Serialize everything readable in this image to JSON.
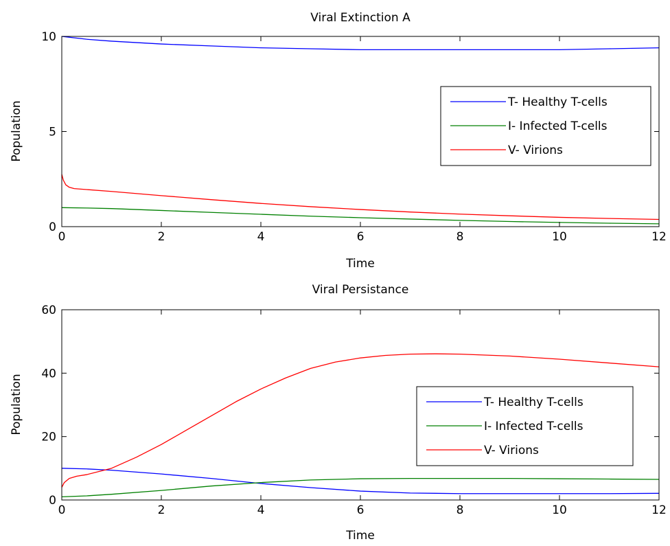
{
  "chart_data": [
    {
      "type": "line",
      "title": "Viral Extinction A",
      "xlabel": "Time",
      "ylabel": "Population",
      "xlim": [
        0,
        12
      ],
      "ylim": [
        0,
        10
      ],
      "xticks": [
        0,
        2,
        4,
        6,
        8,
        10,
        12
      ],
      "yticks": [
        0,
        5,
        10
      ],
      "grid": false,
      "legend_position": "right",
      "series": [
        {
          "name": "T- Healthy T-cells",
          "color": "#0000ff",
          "x": [
            0,
            0.5,
            1,
            2,
            3,
            4,
            5,
            6,
            7,
            8,
            9,
            10,
            11,
            12
          ],
          "y": [
            10,
            9.85,
            9.75,
            9.6,
            9.5,
            9.4,
            9.35,
            9.3,
            9.3,
            9.3,
            9.3,
            9.3,
            9.35,
            9.4
          ]
        },
        {
          "name": "I- Infected T-cells",
          "color": "#008000",
          "x": [
            0,
            0.5,
            1,
            2,
            3,
            4,
            5,
            6,
            7,
            8,
            9,
            10,
            11,
            12
          ],
          "y": [
            1.0,
            0.98,
            0.95,
            0.85,
            0.75,
            0.65,
            0.55,
            0.47,
            0.4,
            0.33,
            0.27,
            0.22,
            0.18,
            0.15
          ]
        },
        {
          "name": "V- Virions",
          "color": "#ff0000",
          "x": [
            0,
            0.03,
            0.08,
            0.15,
            0.25,
            0.5,
            1,
            2,
            3,
            4,
            5,
            6,
            7,
            8,
            9,
            10,
            11,
            12
          ],
          "y": [
            2.75,
            2.45,
            2.2,
            2.07,
            2.0,
            1.95,
            1.85,
            1.63,
            1.42,
            1.22,
            1.05,
            0.9,
            0.77,
            0.66,
            0.57,
            0.49,
            0.43,
            0.38
          ]
        }
      ]
    },
    {
      "type": "line",
      "title": "Viral Persistance",
      "xlabel": "Time",
      "ylabel": "Population",
      "xlim": [
        0,
        12
      ],
      "ylim": [
        0,
        60
      ],
      "xticks": [
        0,
        2,
        4,
        6,
        8,
        10,
        12
      ],
      "yticks": [
        0,
        20,
        40,
        60
      ],
      "grid": false,
      "legend_position": "right",
      "series": [
        {
          "name": "T- Healthy T-cells",
          "color": "#0000ff",
          "x": [
            0,
            0.5,
            1,
            2,
            3,
            4,
            5,
            6,
            7,
            8,
            9,
            10,
            11,
            12
          ],
          "y": [
            10,
            9.8,
            9.4,
            8.2,
            6.8,
            5.2,
            3.9,
            2.8,
            2.2,
            2.0,
            2.0,
            2.0,
            2.0,
            2.1
          ]
        },
        {
          "name": "I- Infected T-cells",
          "color": "#008000",
          "x": [
            0,
            0.5,
            1,
            2,
            3,
            4,
            5,
            6,
            7,
            8,
            9,
            10,
            11,
            12
          ],
          "y": [
            1.0,
            1.3,
            1.8,
            3.0,
            4.4,
            5.5,
            6.3,
            6.7,
            6.8,
            6.8,
            6.8,
            6.7,
            6.6,
            6.5
          ]
        },
        {
          "name": "V- Virions",
          "color": "#ff0000",
          "x": [
            0,
            0.05,
            0.15,
            0.3,
            0.5,
            1,
            1.5,
            2,
            2.5,
            3,
            3.5,
            4,
            4.5,
            5,
            5.5,
            6,
            6.5,
            7,
            7.5,
            8,
            9,
            10,
            11,
            12
          ],
          "y": [
            4.0,
            5.5,
            6.8,
            7.5,
            8.0,
            10.0,
            13.5,
            17.5,
            22.0,
            26.5,
            31.0,
            35.0,
            38.5,
            41.5,
            43.5,
            44.8,
            45.6,
            46.0,
            46.1,
            46.0,
            45.4,
            44.4,
            43.2,
            42.0
          ]
        }
      ]
    }
  ]
}
